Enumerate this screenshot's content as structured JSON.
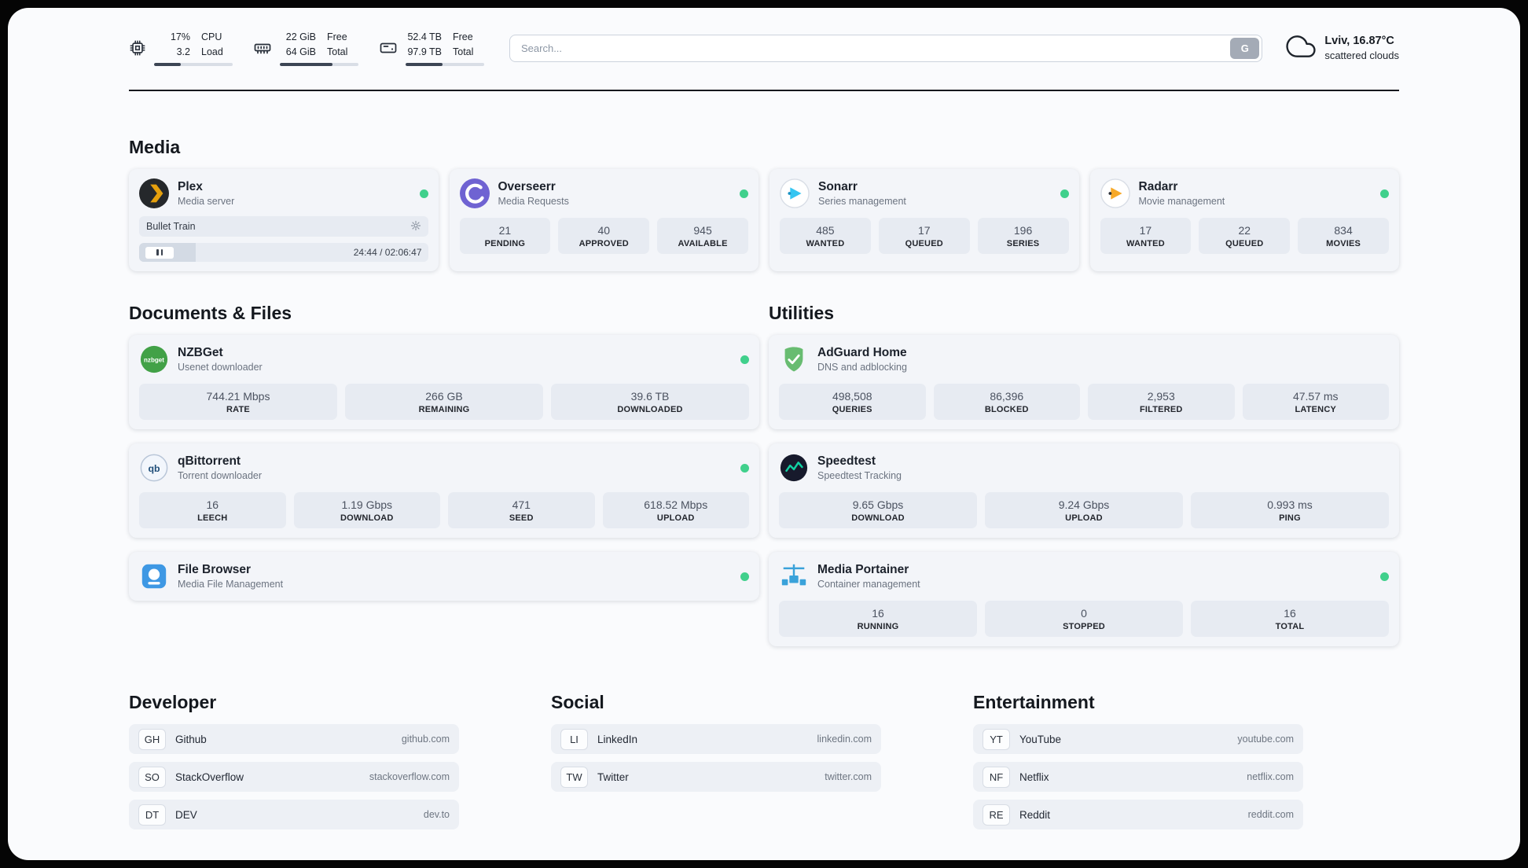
{
  "colors": {
    "status_online": "#40d08c",
    "plex_amber": "#e5a00d",
    "sonarr_blue": "#35c5f1",
    "radarr_orange": "#f7a928",
    "adguard_green": "#68bc71",
    "speedtest_teal": "#12d1a3",
    "portainer_blue": "#3aa2da"
  },
  "system": {
    "cpu": {
      "value_top": "17%",
      "value_bottom": "3.2",
      "label_top": "CPU",
      "label_bottom": "Load",
      "progress_pct": 34
    },
    "memory": {
      "value_top": "22 GiB",
      "value_bottom": "64 GiB",
      "label_top": "Free",
      "label_bottom": "Total",
      "progress_pct": 67
    },
    "storage": {
      "value_top": "52.4 TB",
      "value_bottom": "97.9 TB",
      "label_top": "Free",
      "label_bottom": "Total",
      "progress_pct": 47
    }
  },
  "search": {
    "placeholder": "Search...",
    "engine_label": "G"
  },
  "weather": {
    "location": "Lviv, 16.87°C",
    "condition": "scattered clouds"
  },
  "sections": {
    "media": {
      "title": "Media",
      "apps": [
        {
          "name": "Plex",
          "desc": "Media server",
          "online": true,
          "player": {
            "title": "Bullet Train",
            "time": "24:44 / 02:06:47",
            "progress_pct": 19.5
          }
        },
        {
          "name": "Overseerr",
          "desc": "Media Requests",
          "online": true,
          "stats": [
            {
              "value": "21",
              "label": "PENDING"
            },
            {
              "value": "40",
              "label": "APPROVED"
            },
            {
              "value": "945",
              "label": "AVAILABLE"
            }
          ]
        },
        {
          "name": "Sonarr",
          "desc": "Series management",
          "online": true,
          "stats": [
            {
              "value": "485",
              "label": "WANTED"
            },
            {
              "value": "17",
              "label": "QUEUED"
            },
            {
              "value": "196",
              "label": "SERIES"
            }
          ]
        },
        {
          "name": "Radarr",
          "desc": "Movie management",
          "online": true,
          "stats": [
            {
              "value": "17",
              "label": "WANTED"
            },
            {
              "value": "22",
              "label": "QUEUED"
            },
            {
              "value": "834",
              "label": "MOVIES"
            }
          ]
        }
      ]
    },
    "documents": {
      "title": "Documents & Files",
      "apps": [
        {
          "name": "NZBGet",
          "desc": "Usenet downloader",
          "online": true,
          "icon_label": "nzbget",
          "stats": [
            {
              "value": "744.21 Mbps",
              "label": "RATE"
            },
            {
              "value": "266 GB",
              "label": "REMAINING"
            },
            {
              "value": "39.6 TB",
              "label": "DOWNLOADED"
            }
          ]
        },
        {
          "name": "qBittorrent",
          "desc": "Torrent downloader",
          "online": true,
          "icon_label": "qb",
          "stats": [
            {
              "value": "16",
              "label": "LEECH"
            },
            {
              "value": "1.19 Gbps",
              "label": "DOWNLOAD"
            },
            {
              "value": "471",
              "label": "SEED"
            },
            {
              "value": "618.52 Mbps",
              "label": "UPLOAD"
            }
          ]
        },
        {
          "name": "File Browser",
          "desc": "Media File Management",
          "online": true,
          "stats": []
        }
      ]
    },
    "utilities": {
      "title": "Utilities",
      "apps": [
        {
          "name": "AdGuard Home",
          "desc": "DNS and adblocking",
          "stats": [
            {
              "value": "498,508",
              "label": "QUERIES"
            },
            {
              "value": "86,396",
              "label": "BLOCKED"
            },
            {
              "value": "2,953",
              "label": "FILTERED"
            },
            {
              "value": "47.57 ms",
              "label": "LATENCY"
            }
          ]
        },
        {
          "name": "Speedtest",
          "desc": "Speedtest Tracking",
          "stats": [
            {
              "value": "9.65 Gbps",
              "label": "DOWNLOAD"
            },
            {
              "value": "9.24 Gbps",
              "label": "UPLOAD"
            },
            {
              "value": "0.993 ms",
              "label": "PING"
            }
          ]
        },
        {
          "name": "Media Portainer",
          "desc": "Container management",
          "online": true,
          "stats": [
            {
              "value": "16",
              "label": "RUNNING"
            },
            {
              "value": "0",
              "label": "STOPPED"
            },
            {
              "value": "16",
              "label": "TOTAL"
            }
          ]
        }
      ]
    }
  },
  "bookmarks": [
    {
      "title": "Developer",
      "items": [
        {
          "abbr": "GH",
          "name": "Github",
          "url": "github.com"
        },
        {
          "abbr": "SO",
          "name": "StackOverflow",
          "url": "stackoverflow.com"
        },
        {
          "abbr": "DT",
          "name": "DEV",
          "url": "dev.to"
        }
      ]
    },
    {
      "title": "Social",
      "items": [
        {
          "abbr": "LI",
          "name": "LinkedIn",
          "url": "linkedin.com"
        },
        {
          "abbr": "TW",
          "name": "Twitter",
          "url": "twitter.com"
        }
      ]
    },
    {
      "title": "Entertainment",
      "items": [
        {
          "abbr": "YT",
          "name": "YouTube",
          "url": "youtube.com"
        },
        {
          "abbr": "NF",
          "name": "Netflix",
          "url": "netflix.com"
        },
        {
          "abbr": "RE",
          "name": "Reddit",
          "url": "reddit.com"
        }
      ]
    }
  ]
}
